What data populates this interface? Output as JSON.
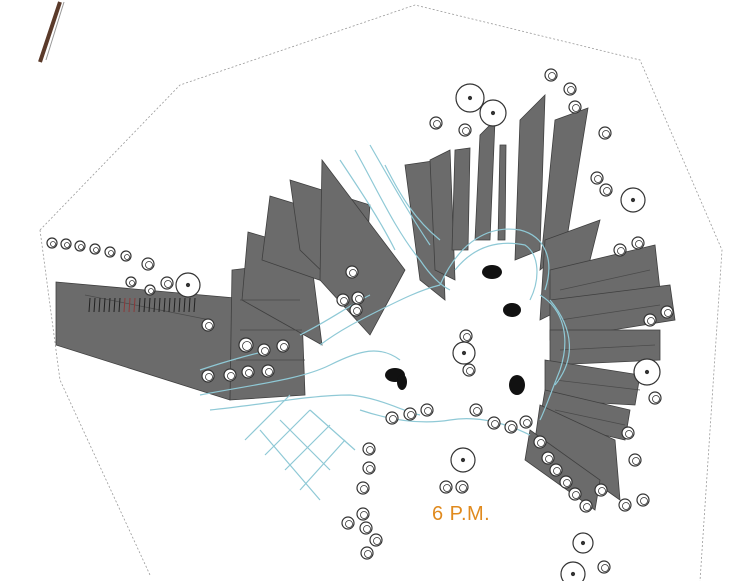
{
  "time_label": "6 P.M.",
  "colors": {
    "shadow": "#6b6b6b",
    "shadow_edge": "#3f3f3f",
    "path": "#8fc9d6",
    "boundary": "#9a9a9a",
    "tree": "#333333",
    "label": "#e08a1e",
    "post": "#5a3a2a"
  },
  "icons": [
    "tree-icon",
    "shrub-icon",
    "sculpture-icon"
  ]
}
